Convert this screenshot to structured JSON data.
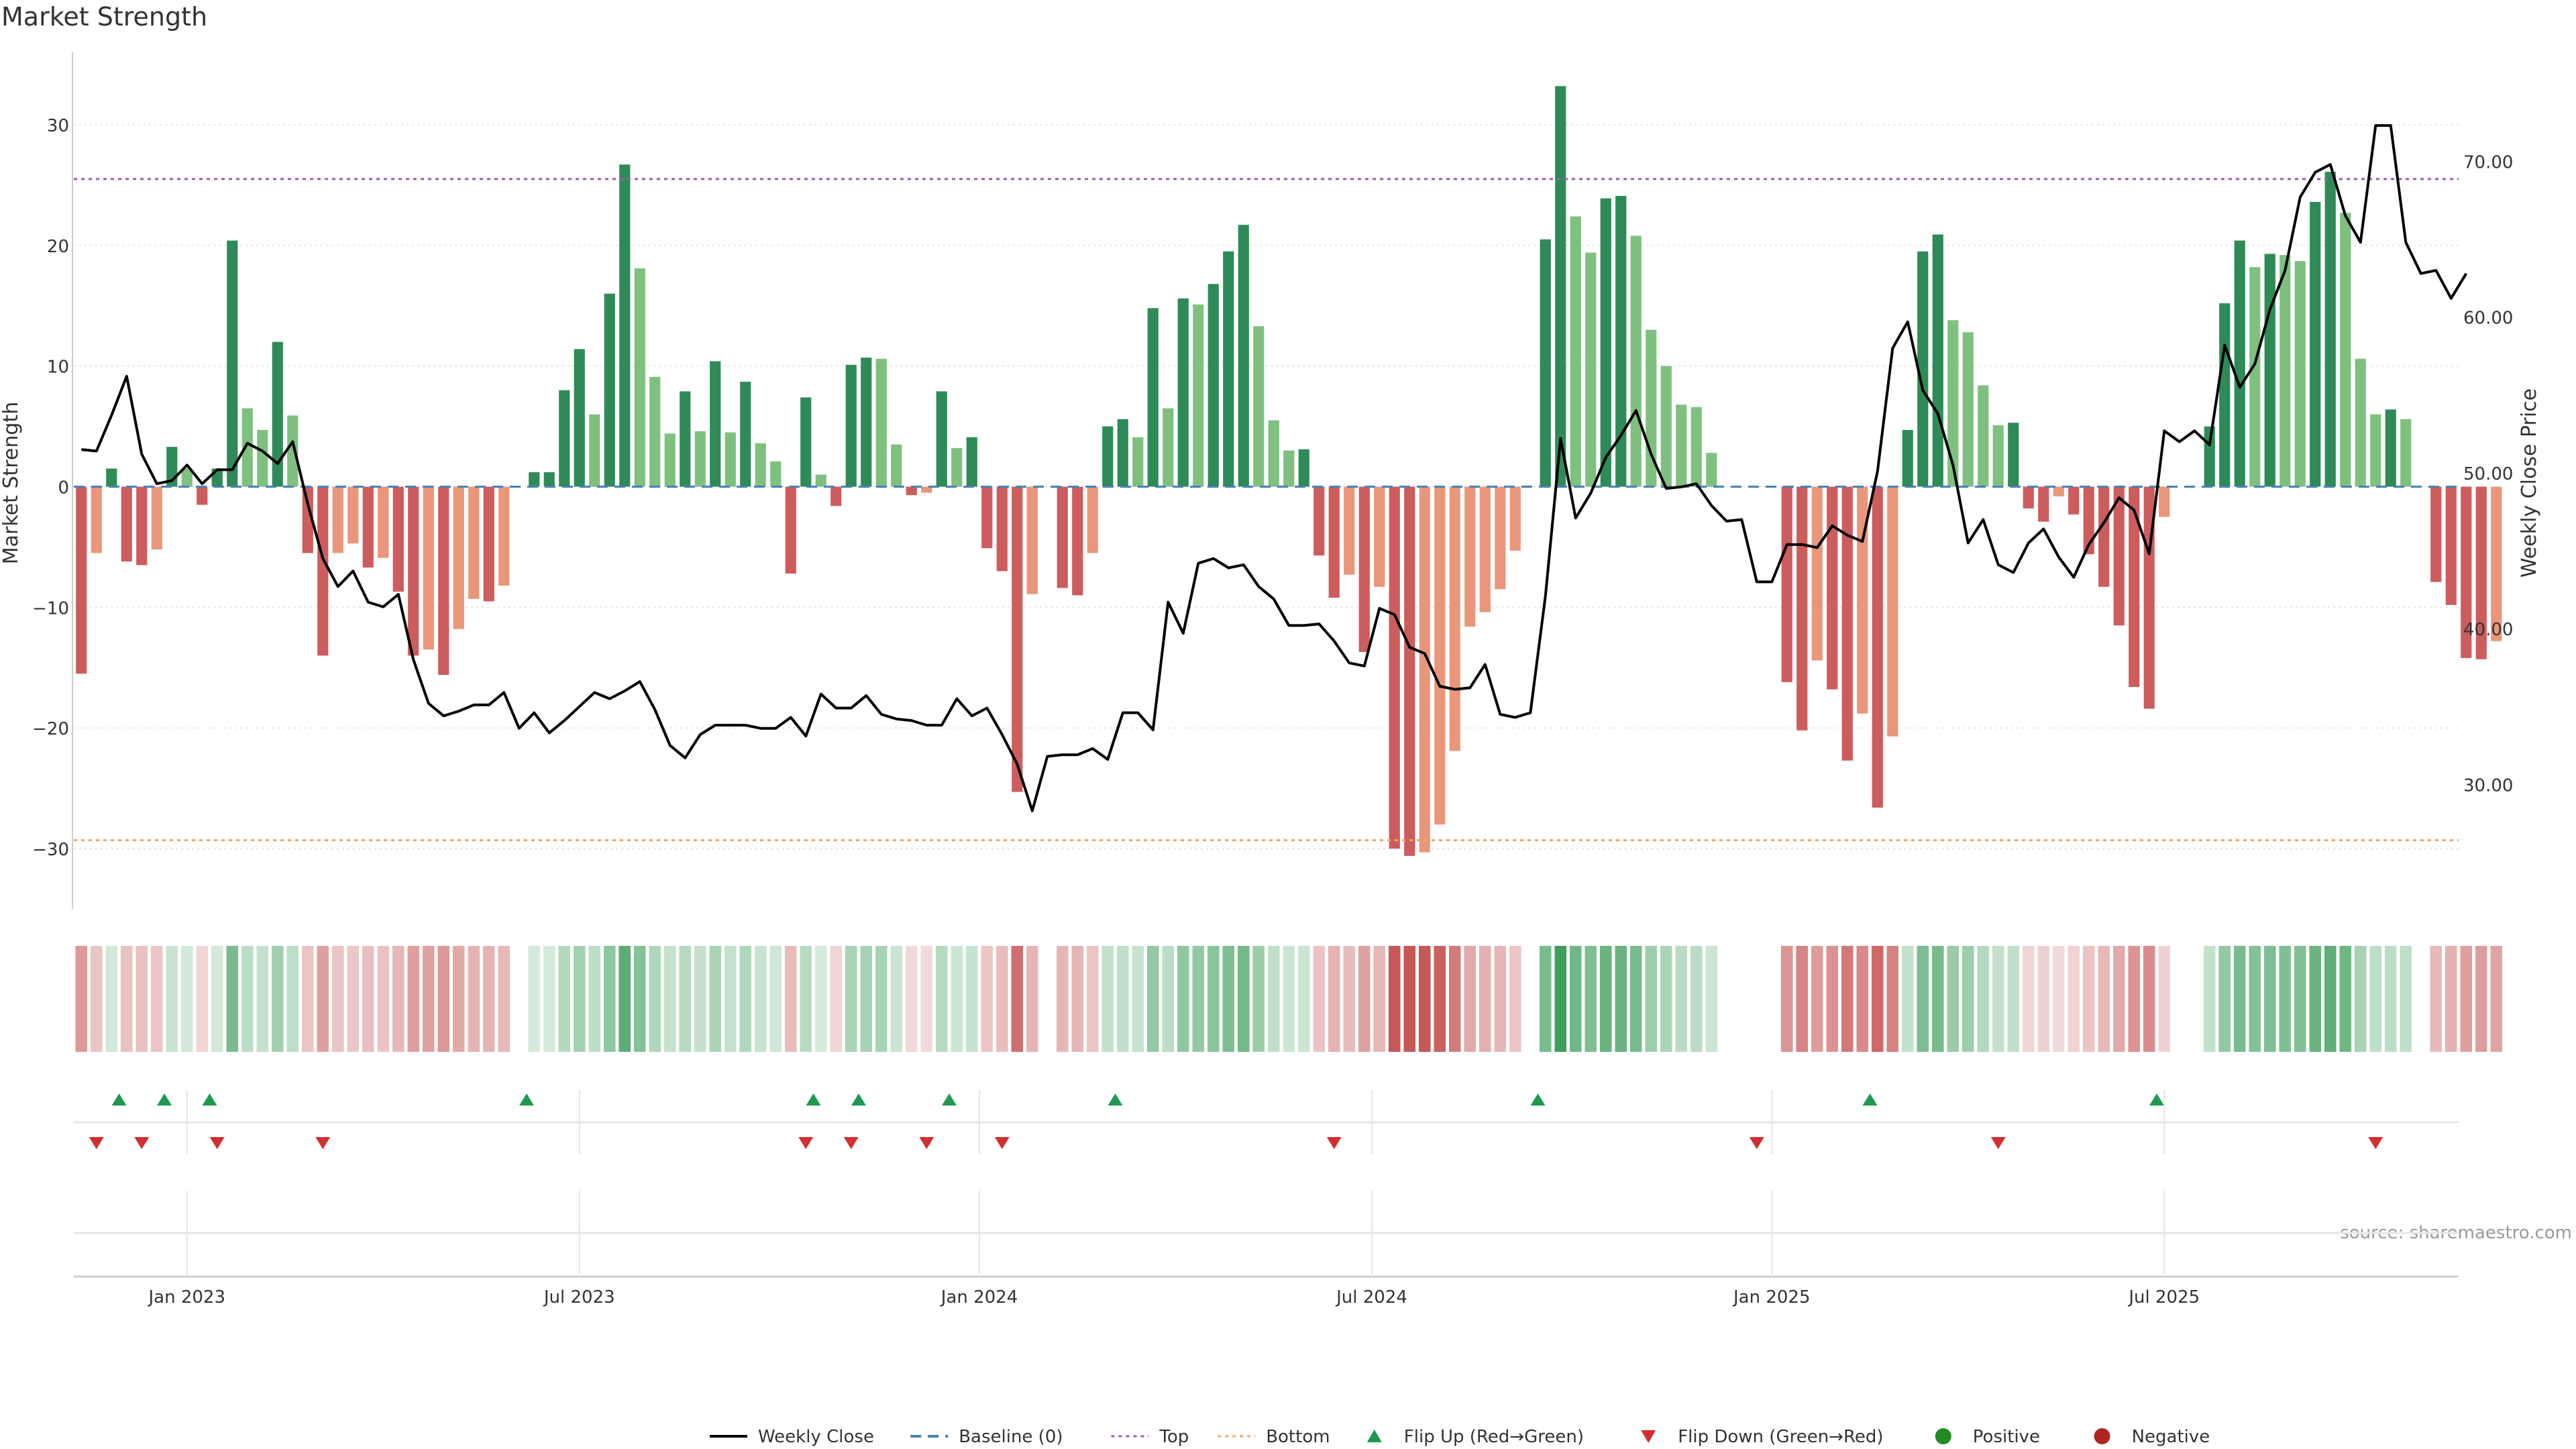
{
  "chart_data": {
    "type": "bar",
    "title": "Market Strength",
    "ylabel_left": "Market Strength",
    "ylabel_right": "Weekly Close Price",
    "ylim_left": [
      -35,
      36
    ],
    "ylim_right": [
      22,
      77
    ],
    "left_ticks": [
      30,
      20,
      10,
      0,
      -10,
      -20,
      -30
    ],
    "left_tick_labels": [
      "30",
      "20",
      "10",
      "0",
      "−10",
      "−20",
      "−30"
    ],
    "right_ticks": [
      70,
      60,
      50,
      40,
      30
    ],
    "right_tick_labels": [
      "70.00",
      "60.00",
      "50.00",
      "40.00",
      "30.00"
    ],
    "x_tick_labels": [
      "Jan 2023",
      "Jul 2023",
      "Jan 2024",
      "Jul 2024",
      "Jan 2025",
      "Jul 2025"
    ],
    "x_tick_weeks": [
      7,
      33,
      59.5,
      85.5,
      112,
      138
    ],
    "top_line": 25.5,
    "bottom_line": -29.3,
    "baseline": 0,
    "source": "source: sharemaestro.com",
    "legend": [
      "Weekly Close",
      "Baseline (0)",
      "Top",
      "Bottom",
      "Flip Up (Red→Green)",
      "Flip Down (Green→Red)",
      "Positive",
      "Negative"
    ],
    "colors": {
      "green_dark": "#2e8b57",
      "green_light": "#7fc07f",
      "red_dark": "#cd5c5c",
      "red_light": "#e9967a",
      "price_line": "#000000",
      "baseline": "#4682b4",
      "top": "#9b59b6",
      "bottom": "#f4a460",
      "flip_up": "#1e9950",
      "flip_down": "#d42e2e",
      "positive": "#228b22",
      "negative": "#b22222"
    },
    "weeks": 158,
    "strength": [
      -15.5,
      -5.5,
      1.5,
      -6.2,
      -6.5,
      -5.2,
      3.3,
      1.5,
      -1.5,
      1.5,
      20.4,
      6.5,
      4.7,
      12,
      5.9,
      -5.5,
      -14,
      -5.5,
      -4.7,
      -6.7,
      -5.9,
      -8.7,
      -14,
      -13.5,
      -15.6,
      -11.8,
      -9.3,
      -9.5,
      -8.2,
      0,
      1.2,
      1.2,
      8,
      11.4,
      6,
      16,
      26.7,
      18.1,
      9.1,
      4.4,
      7.9,
      4.6,
      10.4,
      4.5,
      8.7,
      3.6,
      2.1,
      -7.2,
      7.4,
      1,
      -1.6,
      10.1,
      10.7,
      10.6,
      3.5,
      -0.7,
      -0.5,
      7.9,
      3.2,
      4.1,
      -5.1,
      -7,
      -25.3,
      -8.9,
      0,
      -8.4,
      -9,
      -5.5,
      5,
      5.6,
      4.1,
      14.8,
      6.5,
      15.6,
      15.1,
      16.8,
      19.5,
      21.7,
      13.3,
      5.5,
      3,
      3.1,
      -5.7,
      -9.2,
      -7.3,
      -13.7,
      -8.3,
      -30,
      -30.6,
      -30.3,
      -28,
      -21.9,
      -11.6,
      -10.4,
      -8.5,
      -5.3,
      0,
      20.5,
      33.2,
      22.4,
      19.4,
      23.9,
      24.1,
      20.8,
      13,
      10,
      6.8,
      6.6,
      2.8,
      0,
      0,
      0,
      0,
      -16.2,
      -20.2,
      -14.4,
      -16.8,
      -22.7,
      -18.8,
      -26.6,
      -20.7,
      4.7,
      19.5,
      20.9,
      13.8,
      12.8,
      8.4,
      5.1,
      5.3,
      -1.8,
      -2.9,
      -0.8,
      -2.3,
      -5.6,
      -8.3,
      -11.5,
      -16.6,
      -18.4,
      -2.5,
      0,
      0,
      5,
      15.2,
      20.4,
      18.2,
      19.3,
      19.2,
      18.7,
      23.6,
      26.1,
      22.7,
      10.6,
      6,
      6.4,
      5.6,
      0,
      -7.9,
      -9.8,
      -14.2,
      -14.3,
      -12.8
    ],
    "price": [
      51.5,
      51.4,
      53.7,
      56.2,
      51.2,
      49.3,
      49.5,
      50.5,
      49.3,
      50.2,
      50.2,
      51.9,
      51.4,
      50.6,
      52,
      48,
      44.5,
      42.7,
      43.7,
      41.7,
      41.4,
      42.2,
      38,
      35.2,
      34.4,
      34.7,
      35.1,
      35.1,
      35.9,
      33.6,
      34.6,
      33.3,
      34.1,
      35,
      35.9,
      35.5,
      36,
      36.6,
      34.8,
      32.5,
      31.7,
      33.2,
      33.8,
      33.8,
      33.8,
      33.6,
      33.6,
      34.3,
      33.1,
      35.8,
      34.9,
      34.9,
      35.7,
      34.5,
      34.2,
      34.1,
      33.8,
      33.8,
      35.5,
      34.4,
      34.9,
      33.2,
      31.3,
      28.3,
      31.8,
      31.9,
      31.9,
      32.3,
      31.6,
      34.6,
      34.6,
      33.5,
      41.7,
      39.7,
      44.2,
      44.5,
      43.9,
      44.1,
      42.7,
      41.9,
      40.2,
      40.2,
      40.3,
      39.2,
      37.8,
      37.6,
      41.3,
      40.9,
      38.8,
      38.4,
      36.3,
      36.1,
      36.2,
      37.7,
      34.5,
      34.3,
      34.6,
      42.1,
      52.2,
      47.1,
      48.7,
      51,
      52.4,
      54,
      51.2,
      49,
      49.1,
      49.3,
      47.9,
      46.9,
      47,
      43,
      43,
      45.4,
      45.4,
      45.2,
      46.6,
      46,
      45.6,
      50.1,
      58,
      59.7,
      55.3,
      53.8,
      50.5,
      45.5,
      47,
      44.1,
      43.6,
      45.5,
      46.4,
      44.6,
      43.3,
      45.4,
      46.8,
      48.4,
      47.6,
      44.8,
      52.7,
      52,
      52.7,
      51.8,
      58.2,
      55.5,
      57,
      60.5,
      63,
      67.7,
      69.3,
      69.8,
      66.5,
      64.8,
      72.3,
      72.3,
      64.8,
      62.8,
      63,
      61.2,
      62.8
    ],
    "flip_up_weeks": [
      2.5,
      5.5,
      8.5,
      29.5,
      48.5,
      51.5,
      57.5,
      68.5,
      96.5,
      118.5,
      137.5
    ],
    "flip_down_weeks": [
      1,
      4,
      9,
      16,
      48,
      51,
      56,
      61,
      83,
      111,
      127,
      152
    ]
  }
}
